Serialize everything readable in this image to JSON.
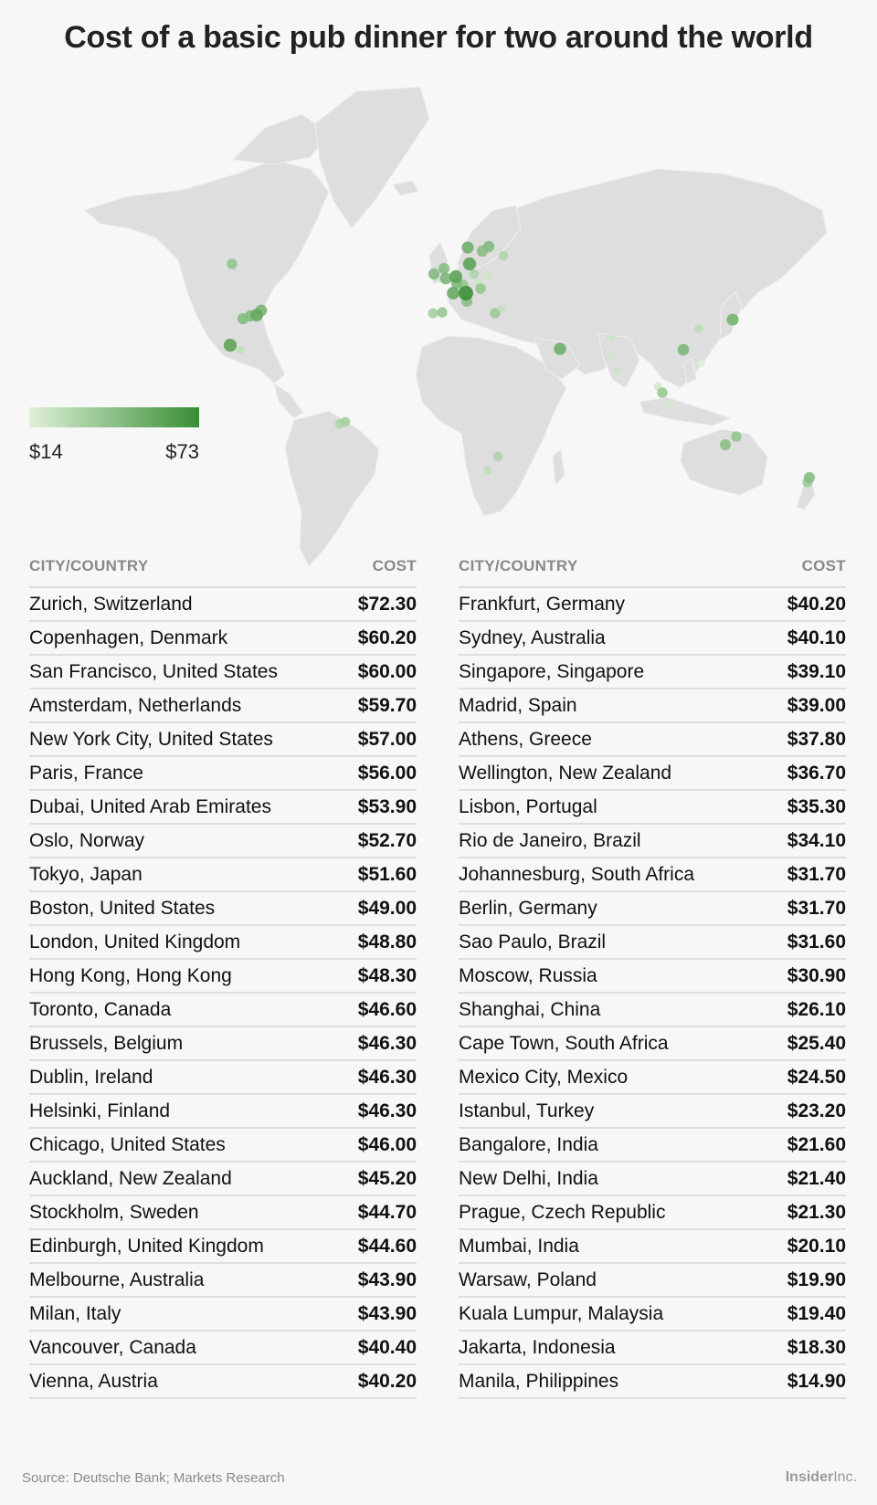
{
  "title": "Cost of a basic pub dinner for two around the world",
  "colors": {
    "min": "#dff0d9",
    "max": "#388e34",
    "land": "#dedede",
    "background": "#f7f7f7"
  },
  "legend": {
    "min_label": "$14",
    "max_label": "$73"
  },
  "table": {
    "col_city": "CITY/COUNTRY",
    "col_cost": "COST"
  },
  "footer": {
    "source": "Source: Deutsche Bank; Markets Research",
    "brand": "Insider",
    "brand_suffix": "Inc."
  },
  "chart_data": {
    "type": "table",
    "title": "Cost of a basic pub dinner for two around the world",
    "color_scale": {
      "min": 14,
      "max": 73
    },
    "rows": [
      {
        "city": "Zurich, Switzerland",
        "cost": "$72.30",
        "value": 72.3
      },
      {
        "city": "Copenhagen, Denmark",
        "cost": "$60.20",
        "value": 60.2
      },
      {
        "city": "San Francisco, United States",
        "cost": "$60.00",
        "value": 60.0
      },
      {
        "city": "Amsterdam, Netherlands",
        "cost": "$59.70",
        "value": 59.7
      },
      {
        "city": "New York City, United States",
        "cost": "$57.00",
        "value": 57.0
      },
      {
        "city": "Paris, France",
        "cost": "$56.00",
        "value": 56.0
      },
      {
        "city": "Dubai, United Arab Emirates",
        "cost": "$53.90",
        "value": 53.9
      },
      {
        "city": "Oslo, Norway",
        "cost": "$52.70",
        "value": 52.7
      },
      {
        "city": "Tokyo, Japan",
        "cost": "$51.60",
        "value": 51.6
      },
      {
        "city": "Boston, United States",
        "cost": "$49.00",
        "value": 49.0
      },
      {
        "city": "London, United Kingdom",
        "cost": "$48.80",
        "value": 48.8
      },
      {
        "city": "Hong Kong, Hong Kong",
        "cost": "$48.30",
        "value": 48.3
      },
      {
        "city": "Toronto, Canada",
        "cost": "$46.60",
        "value": 46.6
      },
      {
        "city": "Brussels, Belgium",
        "cost": "$46.30",
        "value": 46.3
      },
      {
        "city": "Dublin, Ireland",
        "cost": "$46.30",
        "value": 46.3
      },
      {
        "city": "Helsinki, Finland",
        "cost": "$46.30",
        "value": 46.3
      },
      {
        "city": "Chicago, United States",
        "cost": "$46.00",
        "value": 46.0
      },
      {
        "city": "Auckland, New Zealand",
        "cost": "$45.20",
        "value": 45.2
      },
      {
        "city": "Stockholm, Sweden",
        "cost": "$44.70",
        "value": 44.7
      },
      {
        "city": "Edinburgh, United Kingdom",
        "cost": "$44.60",
        "value": 44.6
      },
      {
        "city": "Melbourne, Australia",
        "cost": "$43.90",
        "value": 43.9
      },
      {
        "city": "Milan, Italy",
        "cost": "$43.90",
        "value": 43.9
      },
      {
        "city": "Vancouver, Canada",
        "cost": "$40.40",
        "value": 40.4
      },
      {
        "city": "Vienna, Austria",
        "cost": "$40.20",
        "value": 40.2
      },
      {
        "city": "Frankfurt, Germany",
        "cost": "$40.20",
        "value": 40.2
      },
      {
        "city": "Sydney, Australia",
        "cost": "$40.10",
        "value": 40.1
      },
      {
        "city": "Singapore, Singapore",
        "cost": "$39.10",
        "value": 39.1
      },
      {
        "city": "Madrid, Spain",
        "cost": "$39.00",
        "value": 39.0
      },
      {
        "city": "Athens, Greece",
        "cost": "$37.80",
        "value": 37.8
      },
      {
        "city": "Wellington, New Zealand",
        "cost": "$36.70",
        "value": 36.7
      },
      {
        "city": "Lisbon, Portugal",
        "cost": "$35.30",
        "value": 35.3
      },
      {
        "city": "Rio de Janeiro, Brazil",
        "cost": "$34.10",
        "value": 34.1
      },
      {
        "city": "Johannesburg, South Africa",
        "cost": "$31.70",
        "value": 31.7
      },
      {
        "city": "Berlin, Germany",
        "cost": "$31.70",
        "value": 31.7
      },
      {
        "city": "Sao Paulo, Brazil",
        "cost": "$31.60",
        "value": 31.6
      },
      {
        "city": "Moscow, Russia",
        "cost": "$30.90",
        "value": 30.9
      },
      {
        "city": "Shanghai, China",
        "cost": "$26.10",
        "value": 26.1
      },
      {
        "city": "Cape Town, South Africa",
        "cost": "$25.40",
        "value": 25.4
      },
      {
        "city": "Mexico City, Mexico",
        "cost": "$24.50",
        "value": 24.5
      },
      {
        "city": "Istanbul, Turkey",
        "cost": "$23.20",
        "value": 23.2
      },
      {
        "city": "Bangalore, India",
        "cost": "$21.60",
        "value": 21.6
      },
      {
        "city": "New Delhi, India",
        "cost": "$21.40",
        "value": 21.4
      },
      {
        "city": "Prague, Czech Republic",
        "cost": "$21.30",
        "value": 21.3
      },
      {
        "city": "Mumbai, India",
        "cost": "$20.10",
        "value": 20.1
      },
      {
        "city": "Warsaw, Poland",
        "cost": "$19.90",
        "value": 19.9
      },
      {
        "city": "Kuala Lumpur, Malaysia",
        "cost": "$19.40",
        "value": 19.4
      },
      {
        "city": "Jakarta, Indonesia",
        "cost": "$18.30",
        "value": 18.3
      },
      {
        "city": "Manila, Philippines",
        "cost": "$14.90",
        "value": 14.9
      }
    ]
  }
}
